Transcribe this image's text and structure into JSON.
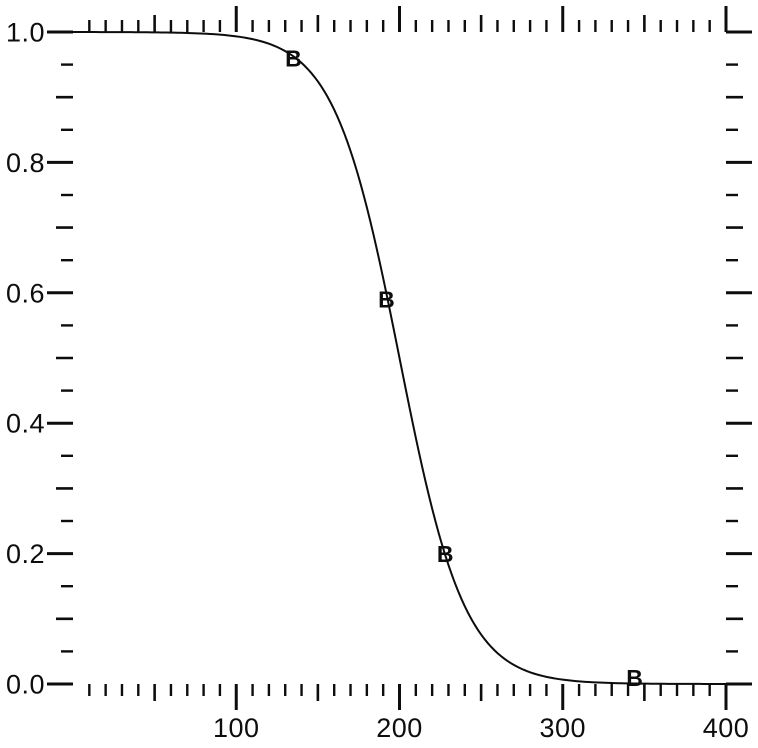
{
  "chart_data": {
    "type": "line",
    "title": "",
    "xlabel": "",
    "ylabel": "",
    "x_range": [
      0,
      400
    ],
    "y_range": [
      0.0,
      1.0
    ],
    "x_tick_labels": [
      "100",
      "200",
      "300",
      "400"
    ],
    "x_label_values": [
      100,
      200,
      300,
      400
    ],
    "x_minor_step": 10,
    "x_medium_step": 50,
    "x_major_step": 100,
    "y_tick_labels": [
      "0.0",
      "0.2",
      "0.4",
      "0.6",
      "0.8",
      "1.0"
    ],
    "y_label_values": [
      0.0,
      0.2,
      0.4,
      0.6,
      0.8,
      1.0
    ],
    "y_minor_step": 0.05,
    "y_medium_step": 0.1,
    "y_major_step": 0.2,
    "grid": "off",
    "legend": "none",
    "axes_style": "outward ticks on all four sides, no axis box lines",
    "curve": {
      "model": "logistic-decreasing",
      "formula": "y = 1 / (1 + exp((x - 200) / 20))",
      "midpoint": 200,
      "scale": 20,
      "start": [
        0,
        1.0
      ],
      "end": [
        400,
        0.0
      ]
    },
    "series": [
      {
        "name": "B data points",
        "marker_glyph": "B",
        "points": [
          [
            135,
            0.96
          ],
          [
            192,
            0.59
          ],
          [
            228,
            0.2
          ],
          [
            344,
            0.01
          ]
        ]
      }
    ],
    "ink_color": "#0d0d0d",
    "background_color": "#ffffff"
  }
}
